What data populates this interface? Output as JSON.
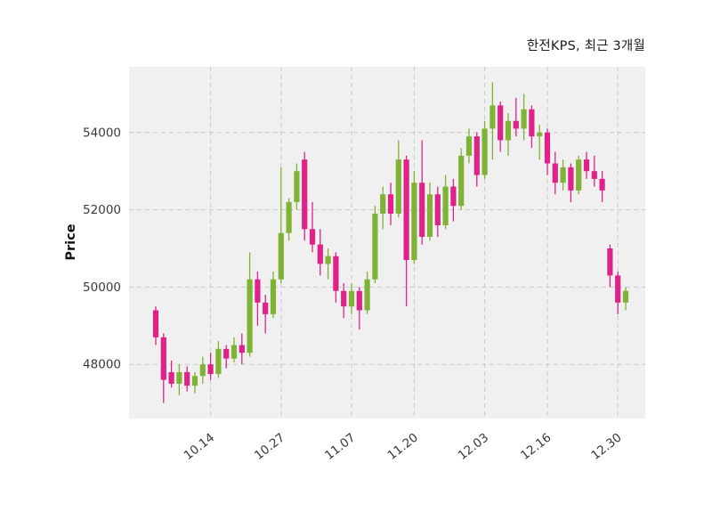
{
  "figure": {
    "title": "한전KPS, 최근 3개월",
    "ylabel": "Price"
  },
  "chart_data": {
    "type": "candlestick",
    "title": "한전KPS, 최근 3개월",
    "ylabel": "Price",
    "ylim": [
      46600,
      55700
    ],
    "y_ticks": [
      48000,
      50000,
      52000,
      54000
    ],
    "x_tick_labels": [
      "10.14",
      "10.27",
      "11.07",
      "11.20",
      "12.03",
      "12.16",
      "12.30"
    ],
    "x_tick_indices": [
      7,
      16,
      25,
      33,
      42,
      50,
      59
    ],
    "up_color": "#7fb335",
    "down_color": "#e0218a",
    "plot_bg": "#f0f0f0",
    "grid_color": "#c9c9c9",
    "tick_label_color": "#3a3a3a",
    "candles": [
      [
        49400,
        49500,
        48500,
        48700
      ],
      [
        48700,
        48800,
        47000,
        47600
      ],
      [
        47800,
        48100,
        47400,
        47500
      ],
      [
        47500,
        48000,
        47200,
        47800
      ],
      [
        47800,
        47950,
        47300,
        47450
      ],
      [
        47450,
        47800,
        47250,
        47700
      ],
      [
        47700,
        48200,
        47500,
        48000
      ],
      [
        48000,
        48300,
        47600,
        47750
      ],
      [
        47750,
        48600,
        47650,
        48400
      ],
      [
        48400,
        48500,
        47900,
        48150
      ],
      [
        48150,
        48700,
        48050,
        48500
      ],
      [
        48500,
        48800,
        48000,
        48300
      ],
      [
        48300,
        50900,
        48200,
        50200
      ],
      [
        50200,
        50400,
        49000,
        49600
      ],
      [
        49600,
        49800,
        48800,
        49300
      ],
      [
        49300,
        50400,
        49200,
        50200
      ],
      [
        50200,
        53100,
        50100,
        51400
      ],
      [
        51400,
        52300,
        51200,
        52200
      ],
      [
        52200,
        53200,
        52000,
        53000
      ],
      [
        53300,
        53500,
        51200,
        51500
      ],
      [
        51500,
        52200,
        50900,
        51100
      ],
      [
        51100,
        51500,
        50300,
        50600
      ],
      [
        50600,
        51000,
        50200,
        50800
      ],
      [
        50800,
        50900,
        49600,
        49900
      ],
      [
        49900,
        50100,
        49200,
        49500
      ],
      [
        49500,
        50100,
        49300,
        49900
      ],
      [
        49900,
        50000,
        48900,
        49400
      ],
      [
        49400,
        50400,
        49300,
        50200
      ],
      [
        50200,
        52100,
        50100,
        51900
      ],
      [
        51900,
        52600,
        51500,
        52400
      ],
      [
        52400,
        52700,
        51600,
        51900
      ],
      [
        51900,
        53800,
        51800,
        53300
      ],
      [
        53300,
        53400,
        49500,
        50700
      ],
      [
        50700,
        53000,
        50600,
        52700
      ],
      [
        52700,
        53800,
        51100,
        51300
      ],
      [
        51300,
        52700,
        51200,
        52400
      ],
      [
        52400,
        52600,
        51300,
        51600
      ],
      [
        51600,
        52900,
        51500,
        52600
      ],
      [
        52600,
        52800,
        51700,
        52100
      ],
      [
        52100,
        53600,
        52000,
        53400
      ],
      [
        53400,
        54100,
        53200,
        53900
      ],
      [
        53900,
        54000,
        52600,
        52900
      ],
      [
        52900,
        54300,
        52800,
        54100
      ],
      [
        54100,
        55300,
        53300,
        54700
      ],
      [
        54700,
        54800,
        53500,
        53800
      ],
      [
        53800,
        54500,
        53400,
        54300
      ],
      [
        54300,
        54900,
        53900,
        54100
      ],
      [
        54100,
        55000,
        53800,
        54600
      ],
      [
        54600,
        54700,
        53600,
        53900
      ],
      [
        53900,
        54200,
        53300,
        54000
      ],
      [
        54000,
        54100,
        52900,
        53200
      ],
      [
        53200,
        53500,
        52400,
        52700
      ],
      [
        52700,
        53300,
        52500,
        53100
      ],
      [
        53100,
        53200,
        52200,
        52500
      ],
      [
        52500,
        53400,
        52400,
        53300
      ],
      [
        53300,
        53500,
        52800,
        53000
      ],
      [
        53000,
        53400,
        52600,
        52800
      ],
      [
        52800,
        53000,
        52200,
        52500
      ],
      [
        51000,
        51100,
        50000,
        50300
      ],
      [
        50300,
        50400,
        49300,
        49600
      ],
      [
        49600,
        50000,
        49400,
        49900
      ]
    ]
  }
}
